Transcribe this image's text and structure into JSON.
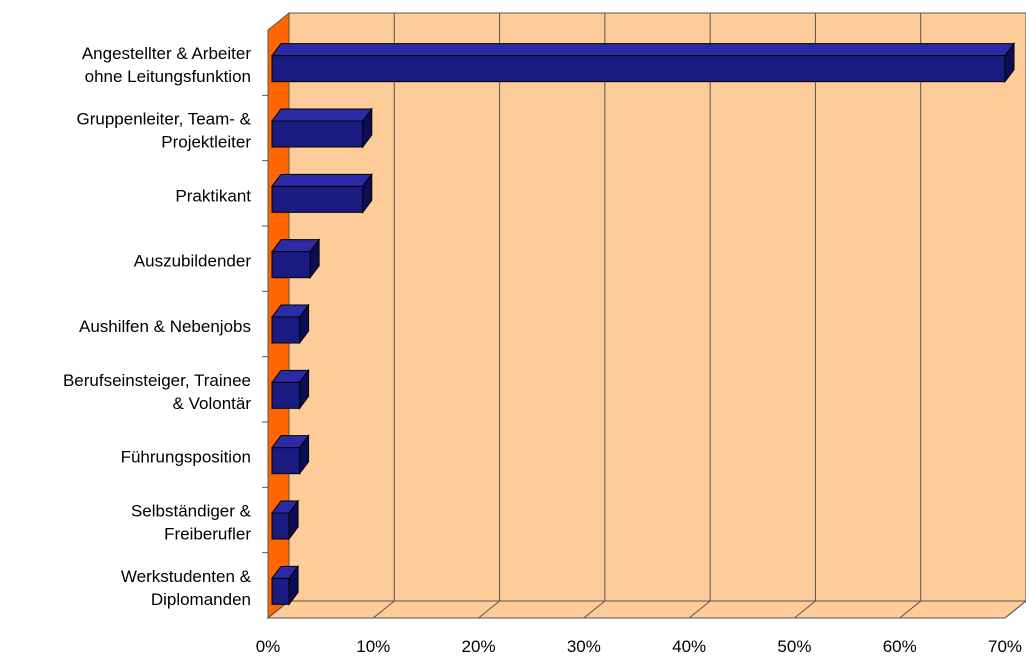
{
  "chart_data": {
    "type": "bar",
    "orientation": "horizontal",
    "three_d": true,
    "categories": [
      [
        "Angestellter & Arbeiter",
        "ohne Leitungsfunktion"
      ],
      [
        "Gruppenleiter, Team- &",
        "Projektleiter"
      ],
      [
        "Praktikant"
      ],
      [
        "Auszubildender"
      ],
      [
        "Aushilfen & Nebenjobs"
      ],
      [
        "Berufseinsteiger, Trainee",
        "& Volontär"
      ],
      [
        "Führungsposition"
      ],
      [
        "Selbständiger &",
        "Freiberufler"
      ],
      [
        "Werkstudenten &",
        "Diplomanden"
      ]
    ],
    "values": [
      0.7,
      0.09,
      0.09,
      0.04,
      0.03,
      0.03,
      0.03,
      0.02,
      0.02
    ],
    "x_ticks": [
      "0%",
      "10%",
      "20%",
      "30%",
      "40%",
      "50%",
      "60%",
      "70%"
    ],
    "xlim": [
      0,
      0.7
    ],
    "grid": true,
    "legend": "none",
    "title": "",
    "xlabel": "",
    "ylabel": "",
    "colors": {
      "bar_front": "#1a1a80",
      "bar_top": "#2b2ba8",
      "bar_side": "#0d0d55",
      "plot_back": "#fdcc99",
      "side_wall": "#ff6600",
      "floor": "#fdcc99",
      "grid": "#555555"
    }
  }
}
